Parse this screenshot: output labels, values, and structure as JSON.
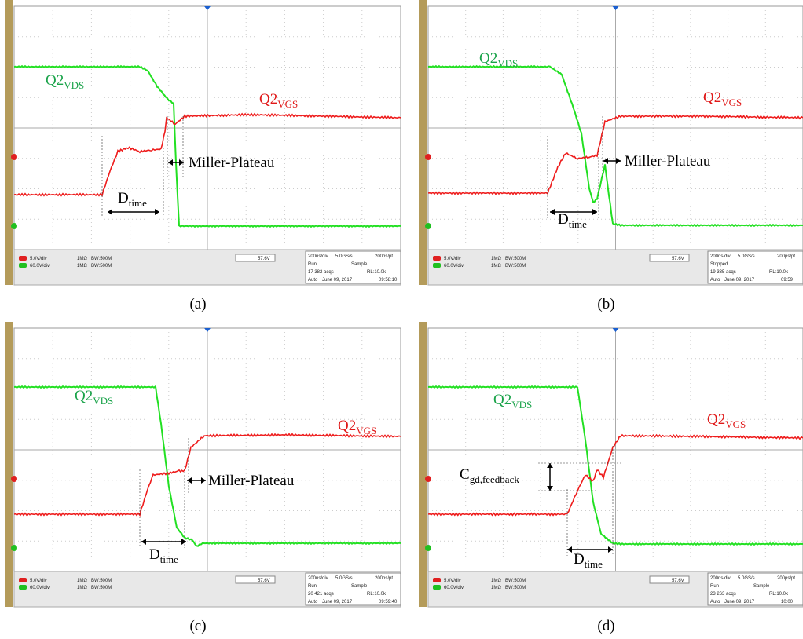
{
  "panels": [
    {
      "label": "(a)",
      "vds": {
        "main": "Q2",
        "sub": "VDS"
      },
      "vgs": {
        "main": "Q2",
        "sub": "VGS"
      },
      "annotation": "Miller-Plateau",
      "dtime": {
        "main": "D",
        "sub": "time"
      },
      "status": {
        "ch1": "5.0V/div",
        "ch2": "60.0V/div",
        "imp": "1MΩ",
        "bw": "BW:500M",
        "trigger": "57.6V",
        "timebase": "200ns/div",
        "rate": "5.0GS/s",
        "res": "200ps/pt",
        "state": "Run",
        "mode": "Sample",
        "acqs": "17 382 acqs",
        "rl": "RL:10.0k",
        "auto": "Auto",
        "date": "June 09, 2017",
        "time": "09:58:10"
      }
    },
    {
      "label": "(b)",
      "vds": {
        "main": "Q2",
        "sub": "VDS"
      },
      "vgs": {
        "main": "Q2",
        "sub": "VGS"
      },
      "annotation": "Miller-Plateau",
      "dtime": {
        "main": "D",
        "sub": "time"
      },
      "status": {
        "ch1": "5.0V/div",
        "ch2": "60.0V/div",
        "imp": "1MΩ",
        "bw": "BW:500M",
        "trigger": "57.6V",
        "timebase": "200ns/div",
        "rate": "5.0GS/s",
        "res": "200ps/pt",
        "state": "Stopped",
        "mode": "",
        "acqs": "19 335 acqs",
        "rl": "RL:10.0k",
        "auto": "Auto",
        "date": "June 09, 2017",
        "time": "09:59"
      }
    },
    {
      "label": "(c)",
      "vds": {
        "main": "Q2",
        "sub": "VDS"
      },
      "vgs": {
        "main": "Q2",
        "sub": "VGS"
      },
      "annotation": "Miller-Plateau",
      "dtime": {
        "main": "D",
        "sub": "time"
      },
      "status": {
        "ch1": "5.0V/div",
        "ch2": "60.0V/div",
        "imp": "1MΩ",
        "bw": "BW:500M",
        "trigger": "57.6V",
        "timebase": "200ns/div",
        "rate": "5.0GS/s",
        "res": "200ps/pt",
        "state": "Run",
        "mode": "Sample",
        "acqs": "20 421 acqs",
        "rl": "RL:10.0k",
        "auto": "Auto",
        "date": "June 09, 2017",
        "time": "09:59:40"
      }
    },
    {
      "label": "(d)",
      "vds": {
        "main": "Q2",
        "sub": "VDS"
      },
      "vgs": {
        "main": "Q2",
        "sub": "VGS"
      },
      "cgd": {
        "main": "C",
        "sub": "gd,feedback"
      },
      "dtime": {
        "main": "D",
        "sub": "time"
      },
      "status": {
        "ch1": "5.0V/div",
        "ch2": "60.0V/div",
        "imp": "1MΩ",
        "bw": "BW:500M",
        "trigger": "57.6V",
        "timebase": "200ns/div",
        "rate": "5.0GS/s",
        "res": "200ps/pt",
        "state": "Run",
        "mode": "Sample",
        "acqs": "23 263 acqs",
        "rl": "RL:10.0k",
        "auto": "Auto",
        "date": "June 09, 2017",
        "time": "10:00"
      }
    }
  ]
}
